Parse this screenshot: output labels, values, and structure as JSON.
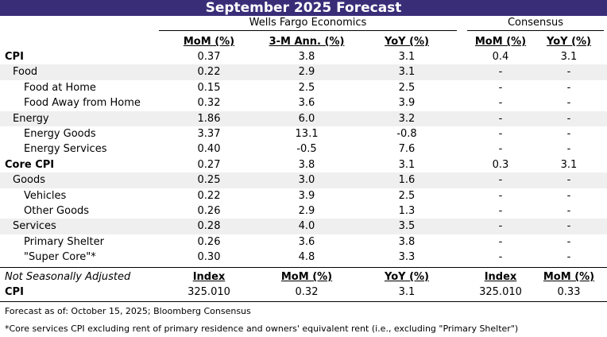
{
  "title": "September 2025 Forecast",
  "groups": [
    "Wells Fargo Economics",
    "Consensus"
  ],
  "headers": [
    "MoM (%)",
    "3-M Ann. (%)",
    "YoY (%)",
    "MoM (%)",
    "YoY (%)"
  ],
  "rows": [
    {
      "label": "CPI",
      "level": 0,
      "values": [
        "0.37",
        "3.8",
        "3.1",
        "0.4",
        "3.1"
      ]
    },
    {
      "label": "Food",
      "level": 1,
      "values": [
        "0.22",
        "2.9",
        "3.1",
        "-",
        "-"
      ]
    },
    {
      "label": "Food at Home",
      "level": 2,
      "values": [
        "0.15",
        "2.5",
        "2.5",
        "-",
        "-"
      ]
    },
    {
      "label": "Food Away from Home",
      "level": 2,
      "values": [
        "0.32",
        "3.6",
        "3.9",
        "-",
        "-"
      ]
    },
    {
      "label": "Energy",
      "level": 1,
      "values": [
        "1.86",
        "6.0",
        "3.2",
        "-",
        "-"
      ]
    },
    {
      "label": "Energy Goods",
      "level": 2,
      "values": [
        "3.37",
        "13.1",
        "-0.8",
        "-",
        "-"
      ]
    },
    {
      "label": "Energy Services",
      "level": 2,
      "values": [
        "0.40",
        "-0.5",
        "7.6",
        "-",
        "-"
      ]
    },
    {
      "label": "Core CPI",
      "level": 0,
      "values": [
        "0.27",
        "3.8",
        "3.1",
        "0.3",
        "3.1"
      ]
    },
    {
      "label": "Goods",
      "level": 1,
      "values": [
        "0.25",
        "3.0",
        "1.6",
        "-",
        "-"
      ]
    },
    {
      "label": "Vehicles",
      "level": 2,
      "values": [
        "0.22",
        "3.9",
        "2.5",
        "-",
        "-"
      ]
    },
    {
      "label": "Other Goods",
      "level": 2,
      "values": [
        "0.26",
        "2.9",
        "1.3",
        "-",
        "-"
      ]
    },
    {
      "label": "Services",
      "level": 1,
      "values": [
        "0.28",
        "4.0",
        "3.5",
        "-",
        "-"
      ]
    },
    {
      "label": "Primary Shelter",
      "level": 2,
      "values": [
        "0.26",
        "3.6",
        "3.8",
        "-",
        "-"
      ]
    },
    {
      "label": "\"Super Core\"*",
      "level": 2,
      "values": [
        "0.30",
        "4.8",
        "3.3",
        "-",
        "-"
      ]
    }
  ],
  "nsa": {
    "label": "Not Seasonally Adjusted",
    "headers": [
      "Index",
      "MoM (%)",
      "YoY (%)",
      "Index",
      "MoM (%)"
    ],
    "row": {
      "label": "CPI",
      "values": [
        "325.010",
        "0.32",
        "3.1",
        "325.010",
        "0.33"
      ]
    }
  },
  "footnotes": [
    "Forecast as of: October 15, 2025; Bloomberg Consensus",
    "*Core services CPI excluding rent of primary residence and owners' equivalent rent (i.e., excluding \"Primary Shelter\")"
  ]
}
